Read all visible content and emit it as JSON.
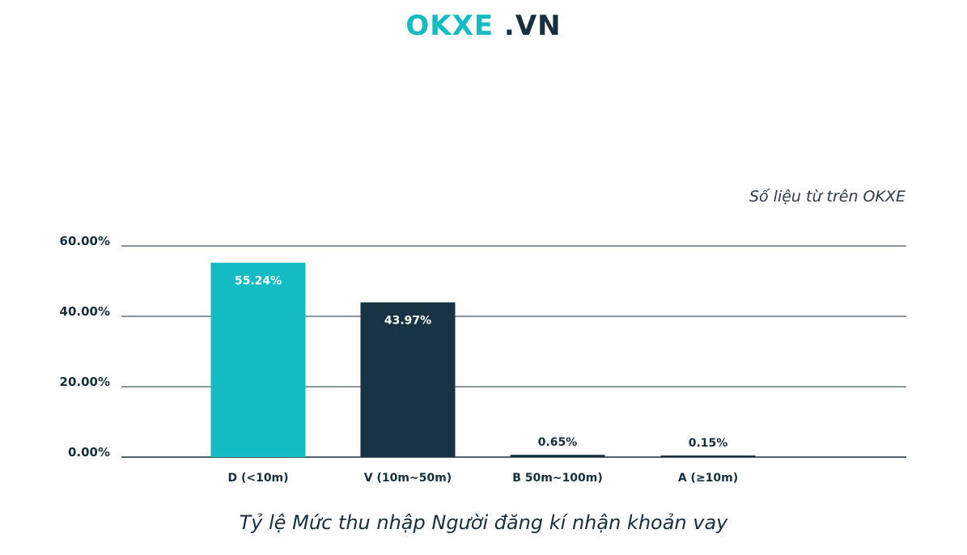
{
  "header": {
    "logo_brand": "OKXE",
    "logo_tld": " .VN"
  },
  "source_note": "Số liệu từ trên OKXE",
  "caption": "Tỷ lệ Mức thu nhập Người đăng kí nhận khoản vay",
  "colors": {
    "teal": "#13bcc3",
    "navy": "#173344",
    "grid": "#16303f"
  },
  "chart_data": {
    "type": "bar",
    "title": "Tỷ lệ Mức thu nhập Người đăng kí nhận khoản vay",
    "categories": [
      "D (<10m)",
      "V (10m~50m)",
      "B 50m~100m)",
      "A (≥10m)"
    ],
    "values": [
      55.24,
      43.97,
      0.65,
      0.15
    ],
    "data_labels": [
      "55.24%",
      "43.97%",
      "0.65%",
      "0.15%"
    ],
    "bar_colors": [
      "#13bcc3",
      "#173344",
      "#173344",
      "#173344"
    ],
    "ylim": [
      0,
      60
    ],
    "yticks": [
      0,
      20,
      40,
      60
    ],
    "ytick_labels": [
      "0.00%",
      "20.00%",
      "40.00%",
      "60.00%"
    ],
    "grid": true,
    "xlabel": "",
    "ylabel": ""
  }
}
